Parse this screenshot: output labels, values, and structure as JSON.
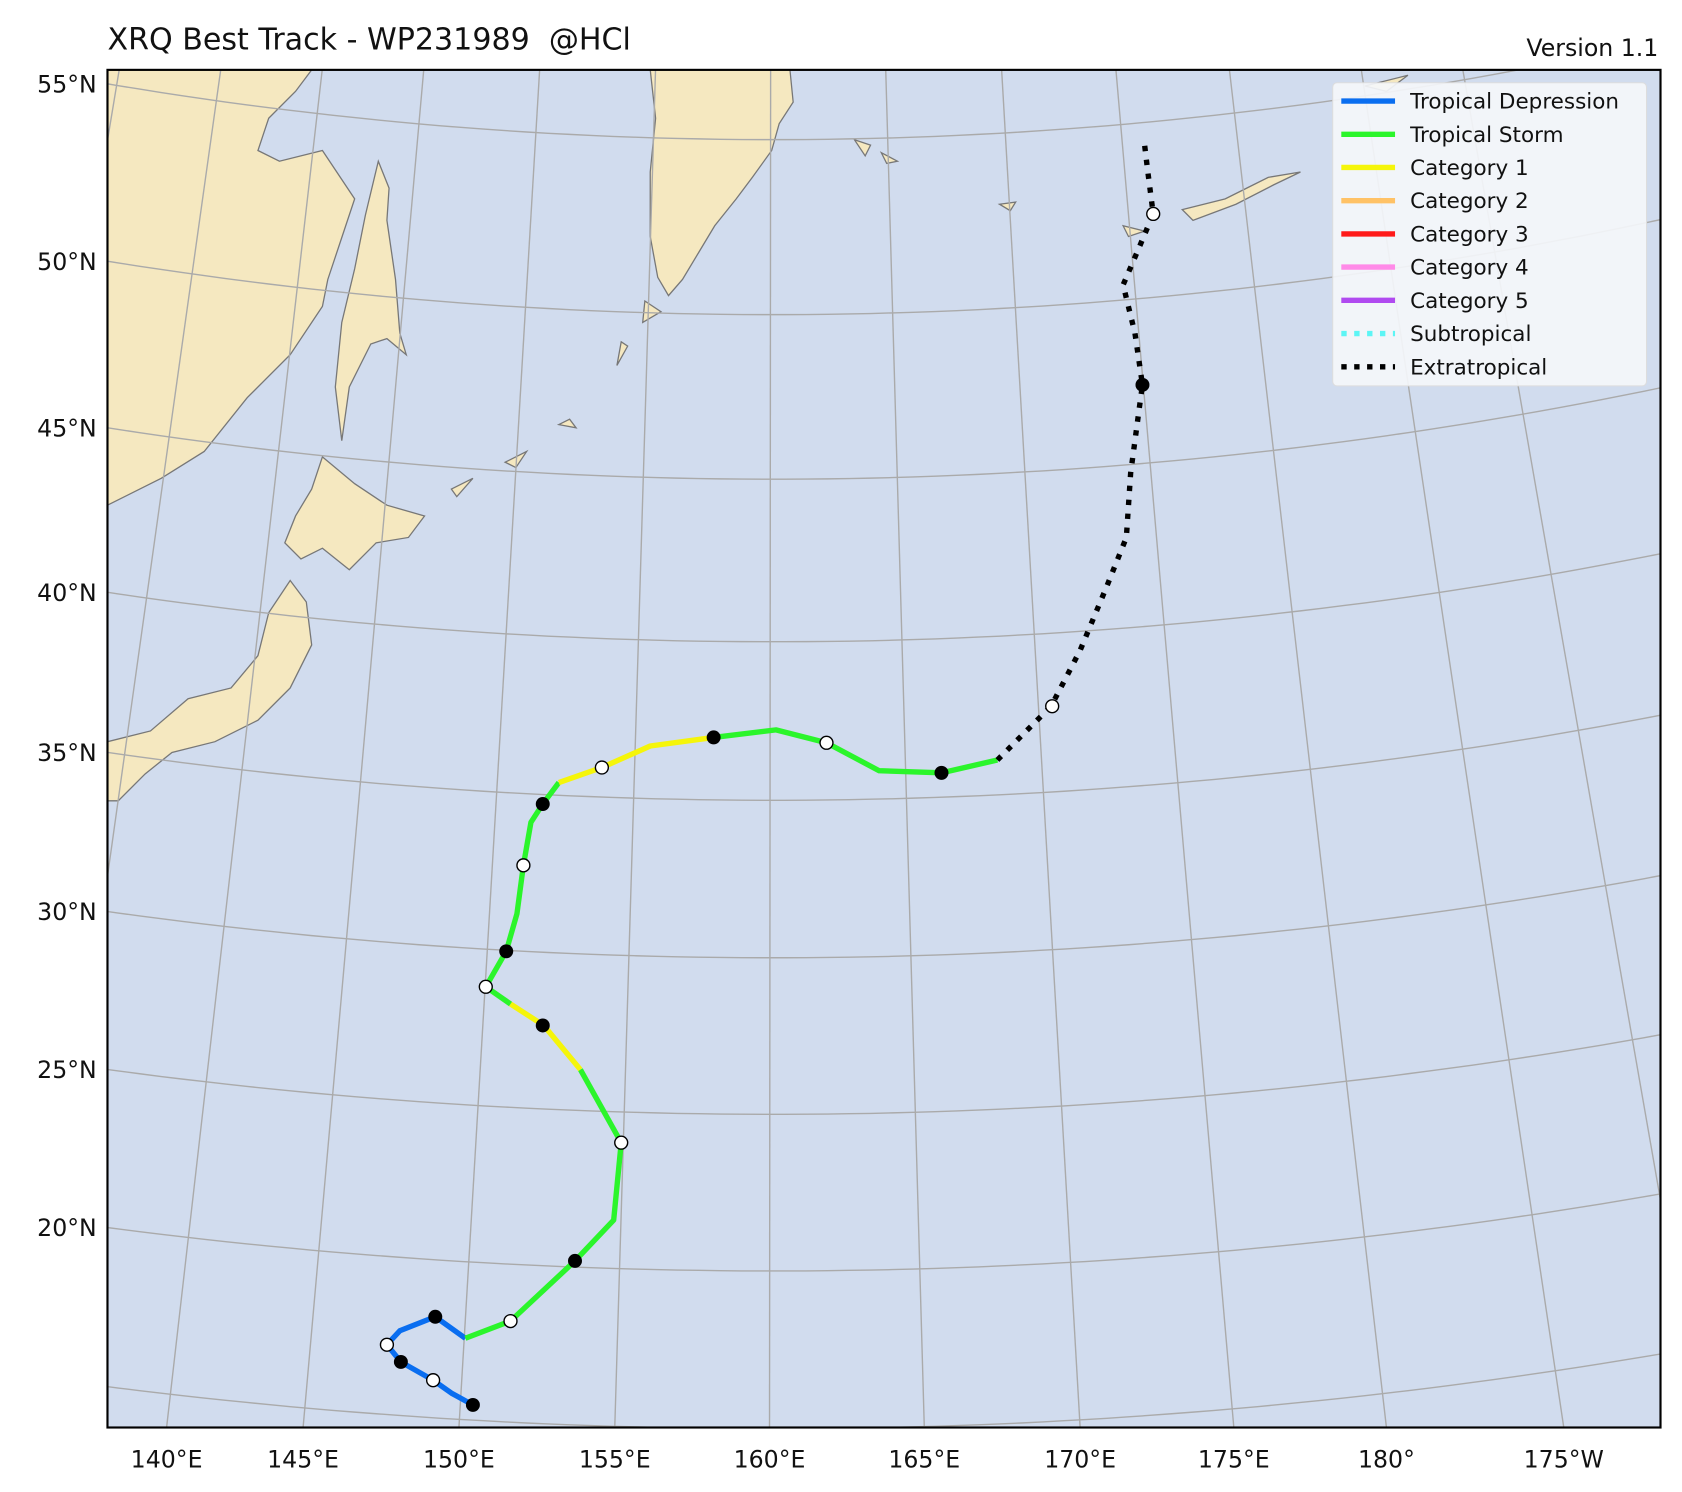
{
  "header": {
    "title": "XRQ Best Track - WP231989  @HCl",
    "version": "Version 1.1"
  },
  "map": {
    "lat_labels": [
      "55°N",
      "50°N",
      "45°N",
      "40°N",
      "35°N",
      "30°N",
      "25°N",
      "20°N"
    ],
    "lon_labels": [
      "140°E",
      "145°E",
      "150°E",
      "155°E",
      "160°E",
      "165°E",
      "170°E",
      "175°E",
      "180°",
      "175°W"
    ]
  },
  "legend": [
    {
      "name": "Tropical Depression",
      "color": "#0a6ef0",
      "style": "solid"
    },
    {
      "name": "Tropical Storm",
      "color": "#2bf52b",
      "style": "solid"
    },
    {
      "name": "Category 1",
      "color": "#f5f50a",
      "style": "solid"
    },
    {
      "name": "Category 2",
      "color": "#ffc266",
      "style": "solid"
    },
    {
      "name": "Category 3",
      "color": "#ff1a1a",
      "style": "solid"
    },
    {
      "name": "Category 4",
      "color": "#ff8ae8",
      "style": "solid"
    },
    {
      "name": "Category 5",
      "color": "#b04af0",
      "style": "solid"
    },
    {
      "name": "Subtropical",
      "color": "#5cf5f5",
      "style": "dotted"
    },
    {
      "name": "Extratropical",
      "color": "#000000",
      "style": "dotted"
    }
  ]
}
